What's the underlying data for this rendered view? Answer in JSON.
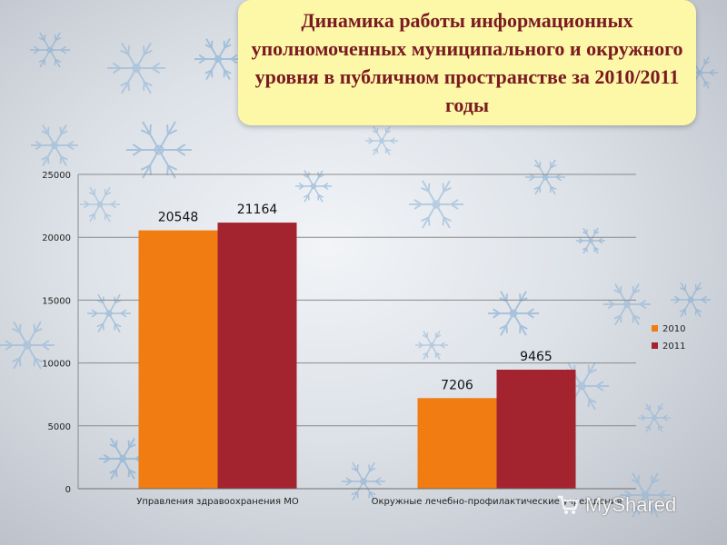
{
  "title": "Динамика работы информационных уполномоченных муниципального и окружного уровня в публичном пространстве за 2010/2011 годы",
  "colors": {
    "series_2010": "#f07c12",
    "series_2011": "#a3232f",
    "title_bg": "#fdf8a8",
    "title_text": "#7a1a22"
  },
  "watermark": {
    "text": "MyShared",
    "icon": "cart-icon"
  },
  "chart_data": {
    "type": "bar",
    "categories": [
      "Управления здравоохранения МО",
      "Окружные лечебно-профилактические учреждения"
    ],
    "series": [
      {
        "name": "2010",
        "values": [
          20548,
          7206
        ]
      },
      {
        "name": "2011",
        "values": [
          21164,
          9465
        ]
      }
    ],
    "data_labels": [
      [
        "20548",
        "7206"
      ],
      [
        "21164",
        "9465"
      ]
    ],
    "ylim": [
      0,
      25000
    ],
    "yticks": [
      0,
      5000,
      10000,
      15000,
      20000,
      25000
    ],
    "grid": true,
    "legend": "right"
  }
}
